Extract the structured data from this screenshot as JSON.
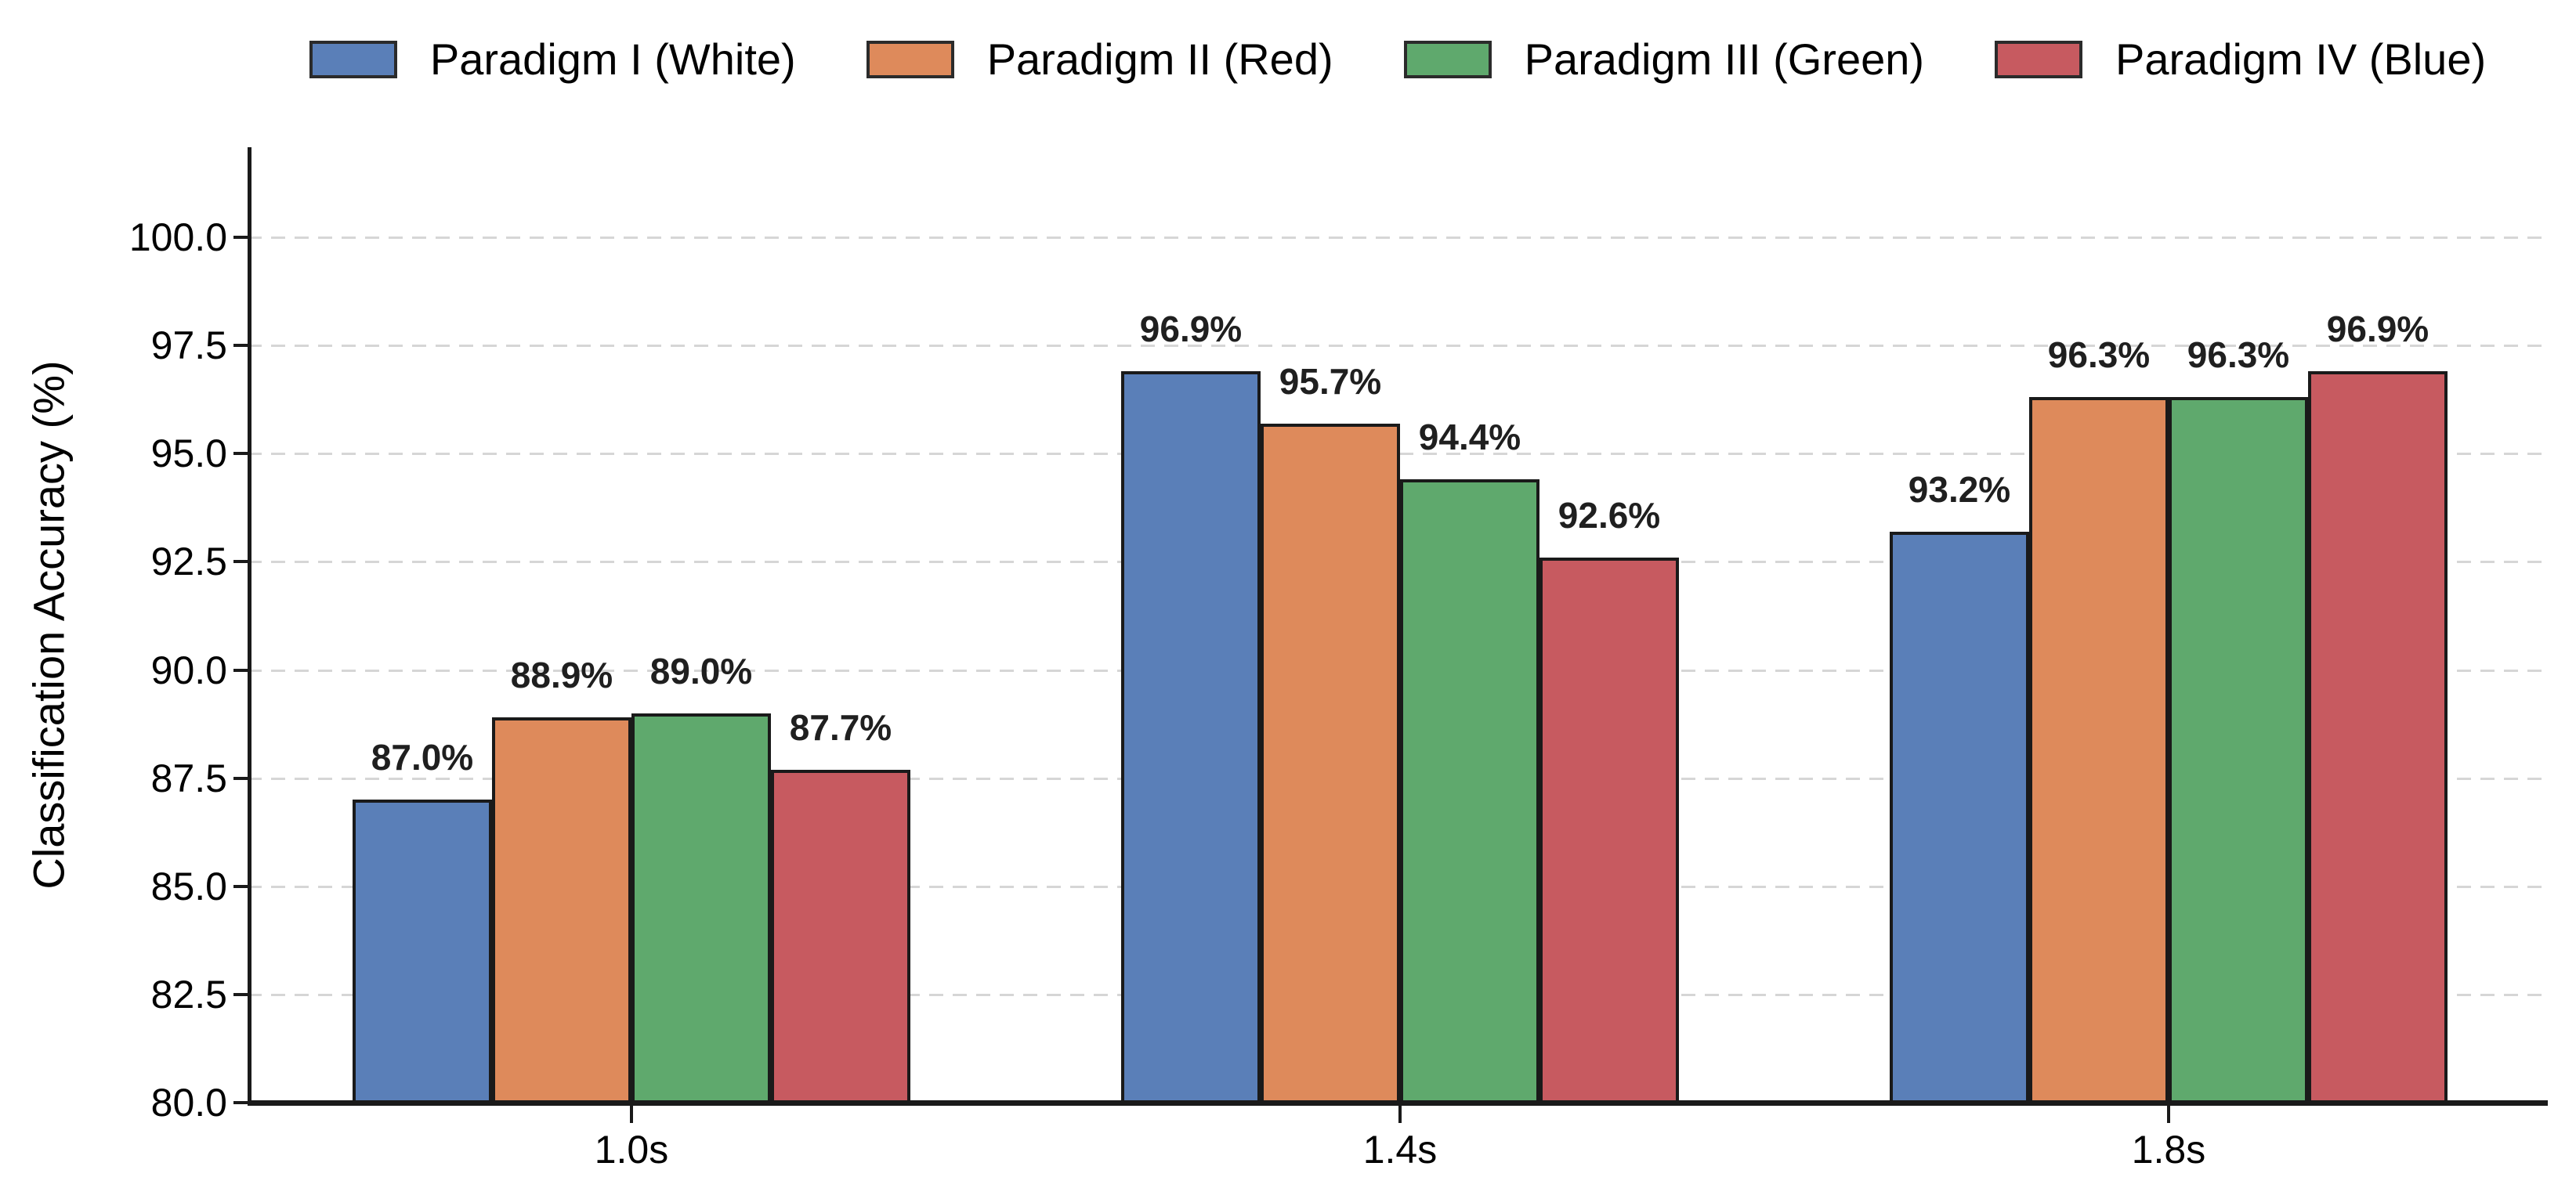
{
  "chart_data": {
    "type": "bar",
    "title": "",
    "categories": [
      "1.0s",
      "1.4s",
      "1.8s"
    ],
    "series": [
      {
        "name": "Paradigm I (White)",
        "color": "#5A7FB8",
        "values": [
          87.0,
          96.9,
          93.2
        ],
        "value_labels": [
          "87.0%",
          "96.9%",
          "93.2%"
        ]
      },
      {
        "name": "Paradigm II (Red)",
        "color": "#DE8A5B",
        "values": [
          88.9,
          95.7,
          96.3
        ],
        "value_labels": [
          "88.9%",
          "95.7%",
          "96.3%"
        ]
      },
      {
        "name": "Paradigm III (Green)",
        "color": "#5FA96D",
        "values": [
          89.0,
          94.4,
          96.3
        ],
        "value_labels": [
          "89.0%",
          "94.4%",
          "96.3%"
        ]
      },
      {
        "name": "Paradigm IV (Blue)",
        "color": "#C75A60",
        "values": [
          87.7,
          92.6,
          96.9
        ],
        "value_labels": [
          "87.7%",
          "92.6%",
          "96.9%"
        ]
      }
    ],
    "xlabel": "",
    "ylabel": "Classification Accuracy (%)",
    "ylim": [
      80.0,
      100.0
    ],
    "ytick_labels": [
      "100.0",
      "97.5",
      "95.0",
      "92.5",
      "90.0",
      "87.5",
      "85.0",
      "82.5",
      "80.0"
    ],
    "ytick_values": [
      100.0,
      97.5,
      95.0,
      92.5,
      90.0,
      87.5,
      85.0,
      82.5,
      80.0
    ],
    "grid": {
      "axis": "y",
      "style": "dashed",
      "color": "#d6d6d6"
    },
    "legend_position": "top",
    "colors": {
      "bar_edge": "#1a1a1a",
      "spine": "#1a1a1a",
      "text": "#000000",
      "value_label_text": "#1f1f1f",
      "background": "#ffffff"
    }
  }
}
